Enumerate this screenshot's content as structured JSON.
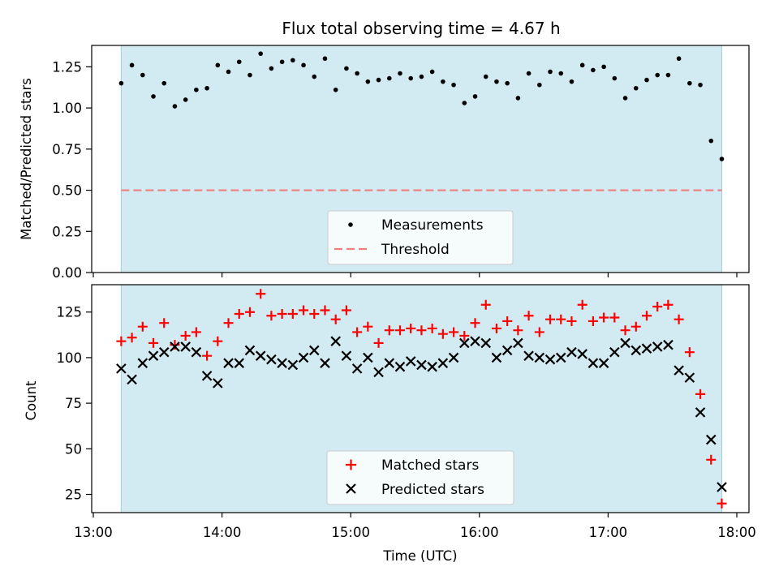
{
  "chart_data": [
    {
      "type": "scatter",
      "title": "Flux total observing time = 4.67 h",
      "xlabel": "",
      "ylabel": "Matched/Predicted stars",
      "xlim": [
        "13:00",
        "18:00"
      ],
      "ylim": [
        0,
        1.38
      ],
      "yticks": [
        "0.00",
        "0.25",
        "0.50",
        "0.75",
        "1.00",
        "1.25"
      ],
      "shaded_span": {
        "start": "13:13",
        "end": "17:53",
        "color": "#add8e6"
      },
      "threshold": {
        "value": 0.5,
        "label": "Threshold",
        "color": "#f08080",
        "style": "dashed"
      },
      "legend": {
        "position": "lower-center",
        "entries": [
          "Measurements",
          "Threshold"
        ]
      },
      "series": [
        {
          "name": "Measurements",
          "color": "#000000",
          "marker": "dot",
          "x": [
            "13:13",
            "13:18",
            "13:23",
            "13:28",
            "13:33",
            "13:38",
            "13:43",
            "13:48",
            "13:53",
            "13:58",
            "14:03",
            "14:08",
            "14:13",
            "14:18",
            "14:23",
            "14:28",
            "14:33",
            "14:38",
            "14:43",
            "14:48",
            "14:53",
            "14:58",
            "15:03",
            "15:08",
            "15:13",
            "15:18",
            "15:23",
            "15:28",
            "15:33",
            "15:38",
            "15:43",
            "15:48",
            "15:53",
            "15:58",
            "16:03",
            "16:08",
            "16:13",
            "16:18",
            "16:23",
            "16:28",
            "16:33",
            "16:38",
            "16:43",
            "16:48",
            "16:53",
            "16:58",
            "17:03",
            "17:08",
            "17:13",
            "17:18",
            "17:23",
            "17:28",
            "17:33",
            "17:38",
            "17:43",
            "17:48",
            "17:53"
          ],
          "y": [
            1.15,
            1.26,
            1.2,
            1.07,
            1.15,
            1.01,
            1.05,
            1.11,
            1.12,
            1.26,
            1.22,
            1.28,
            1.2,
            1.33,
            1.24,
            1.28,
            1.29,
            1.26,
            1.19,
            1.3,
            1.11,
            1.24,
            1.21,
            1.16,
            1.17,
            1.18,
            1.21,
            1.18,
            1.19,
            1.22,
            1.16,
            1.14,
            1.03,
            1.07,
            1.19,
            1.16,
            1.15,
            1.06,
            1.21,
            1.14,
            1.22,
            1.21,
            1.16,
            1.26,
            1.23,
            1.25,
            1.18,
            1.06,
            1.12,
            1.17,
            1.2,
            1.2,
            1.3,
            1.15,
            1.14,
            0.8,
            0.69
          ]
        }
      ]
    },
    {
      "type": "scatter",
      "title": "",
      "xlabel": "Time (UTC)",
      "ylabel": "Count",
      "xlim": [
        "13:00",
        "18:00"
      ],
      "ylim": [
        15,
        140
      ],
      "xticks": [
        "13:00",
        "14:00",
        "15:00",
        "16:00",
        "17:00",
        "18:00"
      ],
      "yticks": [
        "25",
        "50",
        "75",
        "100",
        "125"
      ],
      "shaded_span": {
        "start": "13:13",
        "end": "17:53",
        "color": "#add8e6"
      },
      "legend": {
        "position": "lower-center",
        "entries": [
          "Matched stars",
          "Predicted stars"
        ]
      },
      "series": [
        {
          "name": "Matched stars",
          "color": "#ff0000",
          "marker": "plus",
          "x": [
            "13:13",
            "13:18",
            "13:23",
            "13:28",
            "13:33",
            "13:38",
            "13:43",
            "13:48",
            "13:53",
            "13:58",
            "14:03",
            "14:08",
            "14:13",
            "14:18",
            "14:23",
            "14:28",
            "14:33",
            "14:38",
            "14:43",
            "14:48",
            "14:53",
            "14:58",
            "15:03",
            "15:08",
            "15:13",
            "15:18",
            "15:23",
            "15:28",
            "15:33",
            "15:38",
            "15:43",
            "15:48",
            "15:53",
            "15:58",
            "16:03",
            "16:08",
            "16:13",
            "16:18",
            "16:23",
            "16:28",
            "16:33",
            "16:38",
            "16:43",
            "16:48",
            "16:53",
            "16:58",
            "17:03",
            "17:08",
            "17:13",
            "17:18",
            "17:23",
            "17:28",
            "17:33",
            "17:38",
            "17:43",
            "17:48",
            "17:53"
          ],
          "y": [
            109,
            111,
            117,
            108,
            119,
            107,
            112,
            114,
            101,
            109,
            119,
            124,
            125,
            135,
            123,
            124,
            124,
            126,
            124,
            126,
            121,
            126,
            114,
            117,
            108,
            115,
            115,
            116,
            115,
            116,
            113,
            114,
            112,
            119,
            129,
            116,
            120,
            115,
            123,
            114,
            121,
            121,
            120,
            129,
            120,
            122,
            122,
            115,
            117,
            123,
            128,
            129,
            121,
            103,
            80,
            44,
            20
          ]
        },
        {
          "name": "Predicted stars",
          "color": "#000000",
          "marker": "x",
          "x": [
            "13:13",
            "13:18",
            "13:23",
            "13:28",
            "13:33",
            "13:38",
            "13:43",
            "13:48",
            "13:53",
            "13:58",
            "14:03",
            "14:08",
            "14:13",
            "14:18",
            "14:23",
            "14:28",
            "14:33",
            "14:38",
            "14:43",
            "14:48",
            "14:53",
            "14:58",
            "15:03",
            "15:08",
            "15:13",
            "15:18",
            "15:23",
            "15:28",
            "15:33",
            "15:38",
            "15:43",
            "15:48",
            "15:53",
            "15:58",
            "16:03",
            "16:08",
            "16:13",
            "16:18",
            "16:23",
            "16:28",
            "16:33",
            "16:38",
            "16:43",
            "16:48",
            "16:53",
            "16:58",
            "17:03",
            "17:08",
            "17:13",
            "17:18",
            "17:23",
            "17:28",
            "17:33",
            "17:38",
            "17:43",
            "17:48",
            "17:53"
          ],
          "y": [
            94,
            88,
            97,
            101,
            103,
            106,
            106,
            103,
            90,
            86,
            97,
            97,
            104,
            101,
            99,
            97,
            96,
            100,
            104,
            97,
            109,
            101,
            94,
            100,
            92,
            97,
            95,
            98,
            96,
            95,
            97,
            100,
            108,
            109,
            108,
            100,
            104,
            108,
            101,
            100,
            99,
            100,
            103,
            102,
            97,
            97,
            103,
            108,
            104,
            105,
            106,
            107,
            93,
            89,
            70,
            55,
            29
          ]
        }
      ]
    }
  ]
}
